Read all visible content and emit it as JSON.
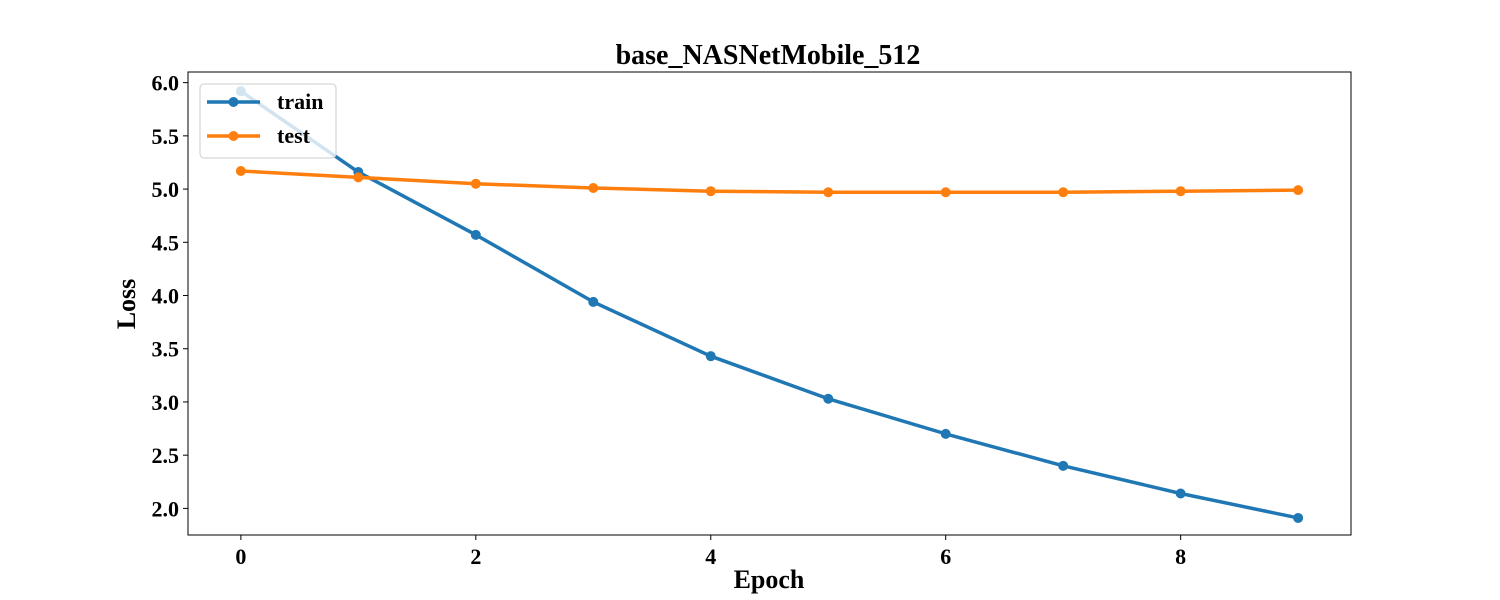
{
  "chart_data": {
    "type": "line",
    "title": "base_NASNetMobile_512",
    "xlabel": "Epoch",
    "ylabel": "Loss",
    "x": [
      0,
      1,
      2,
      3,
      4,
      5,
      6,
      7,
      8,
      9
    ],
    "xlim": [
      -0.45,
      9.45
    ],
    "ylim": [
      1.75,
      6.1
    ],
    "xticks": [
      0,
      2,
      4,
      6,
      8
    ],
    "yticks": [
      2.0,
      2.5,
      3.0,
      3.5,
      4.0,
      4.5,
      5.0,
      5.5,
      6.0
    ],
    "ytick_labels": [
      "2.0",
      "2.5",
      "3.0",
      "3.5",
      "4.0",
      "4.5",
      "5.0",
      "5.5",
      "6.0"
    ],
    "grid": false,
    "legend_position": "top-left",
    "series": [
      {
        "name": "train",
        "color": "#1f77b4",
        "values": [
          5.92,
          5.16,
          4.57,
          3.94,
          3.43,
          3.03,
          2.7,
          2.4,
          2.14,
          1.91
        ]
      },
      {
        "name": "test",
        "color": "#ff7f0e",
        "values": [
          5.17,
          5.11,
          5.05,
          5.01,
          4.98,
          4.97,
          4.97,
          4.97,
          4.98,
          4.99
        ]
      }
    ]
  }
}
